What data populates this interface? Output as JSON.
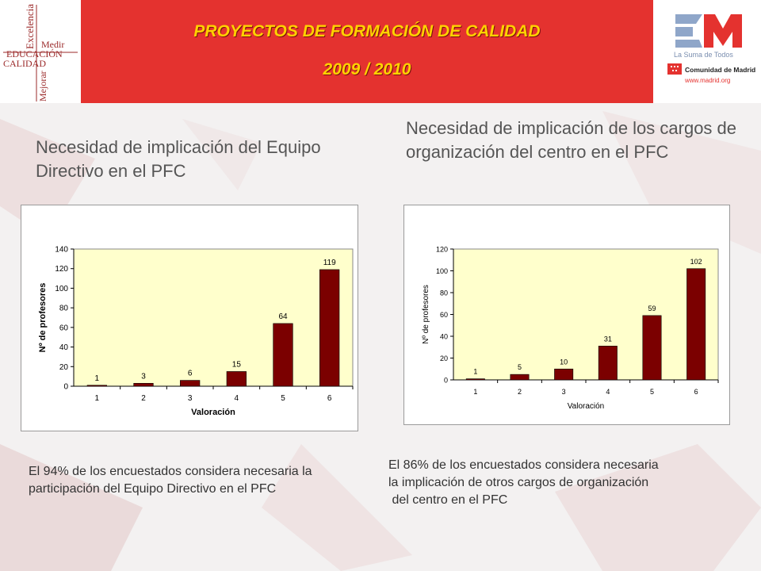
{
  "header": {
    "title_line1": "PROYECTOS DE FORMACIÓN DE CALIDAD",
    "title_line2": "2009 / 2010",
    "logo_left": {
      "words": [
        "Excelencia",
        "Medir",
        "EDUCACIÓN",
        "CALIDAD",
        "Mejorar"
      ]
    },
    "logo_right": {
      "tagline": "La Suma de Todos",
      "org": "Comunidad de Madrid",
      "url": "www.madrid.org"
    }
  },
  "headings": {
    "left": "Necesidad de implicación del Equipo Directivo en el PFC",
    "right": "Necesidad de implicación de los cargos de organización del centro en el PFC"
  },
  "notes": {
    "left": "El 94% de los encuestados considera necesaria la participación del Equipo Directivo en el PFC",
    "right_lines": [
      "El 86% de los encuestados considera necesaria",
      "la implicación de otros cargos de organización",
      " del centro en el PFC"
    ]
  },
  "colors": {
    "bar": "#7b0000",
    "plot_bg": "#ffffcc",
    "header_red": "#e4322f",
    "title_yellow": "#ffd200"
  },
  "chart_data": [
    {
      "type": "bar",
      "categories": [
        "1",
        "2",
        "3",
        "4",
        "5",
        "6"
      ],
      "values": [
        1,
        3,
        6,
        15,
        64,
        119
      ],
      "title": "",
      "xlabel": "Valoración",
      "ylabel": "Nº de profesores",
      "ylim": [
        0,
        140
      ],
      "yticks": [
        0,
        20,
        40,
        60,
        80,
        100,
        120,
        140
      ],
      "grid": false,
      "data_labels": true
    },
    {
      "type": "bar",
      "categories": [
        "1",
        "2",
        "3",
        "4",
        "5",
        "6"
      ],
      "values": [
        1,
        5,
        10,
        31,
        59,
        102
      ],
      "title": "",
      "xlabel": "Valoración",
      "ylabel": "Nº de profesores",
      "ylim": [
        0,
        120
      ],
      "yticks": [
        0,
        20,
        40,
        60,
        80,
        100,
        120
      ],
      "grid": false,
      "data_labels": true
    }
  ]
}
